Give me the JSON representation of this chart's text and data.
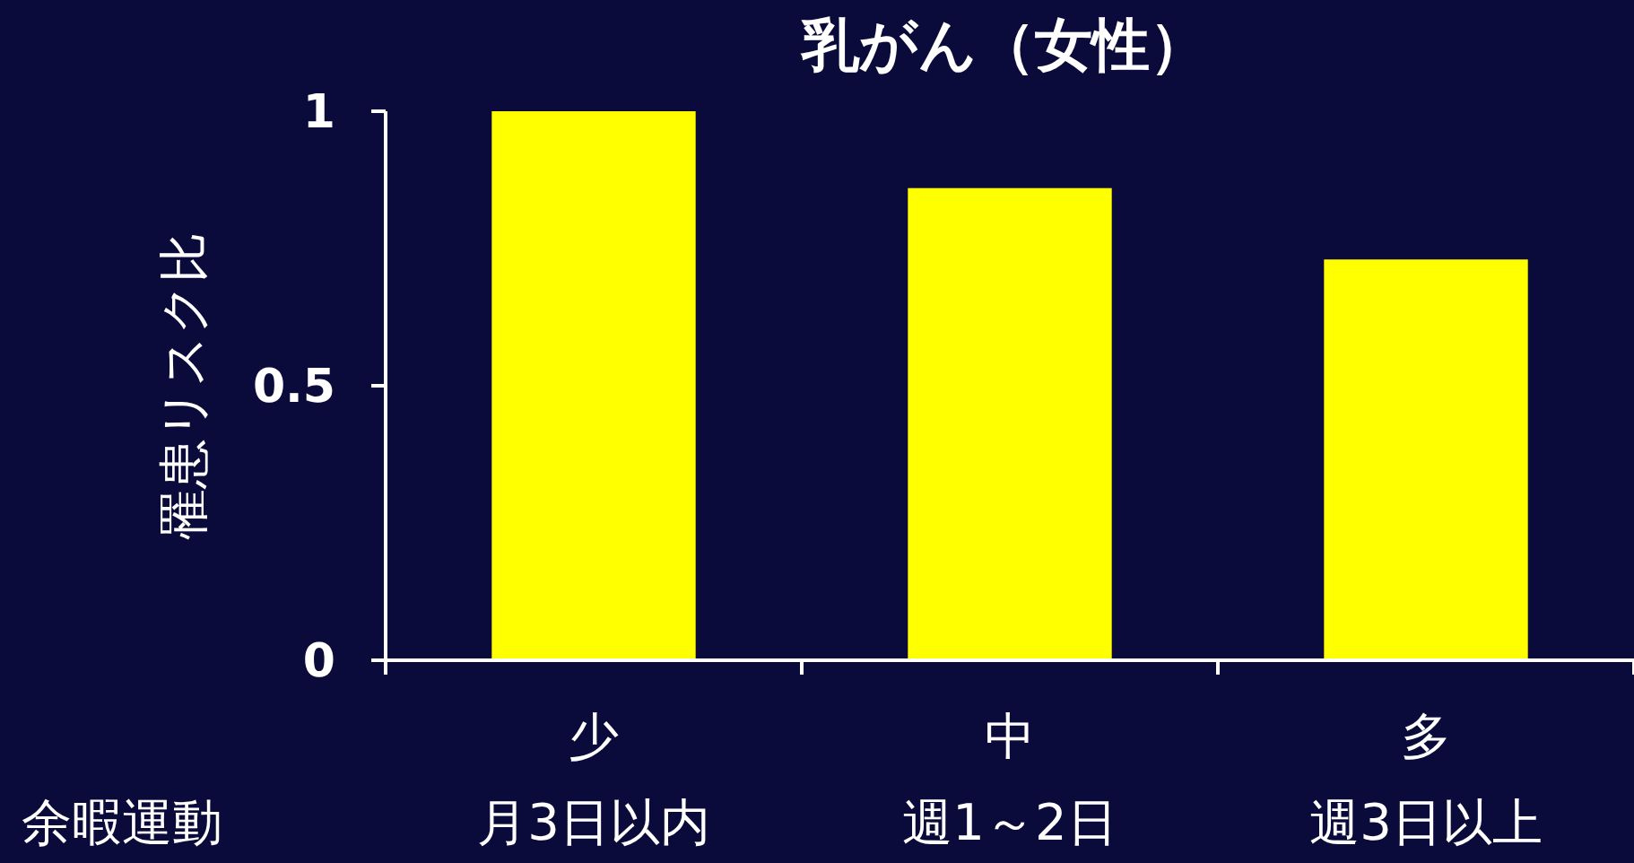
{
  "chart_data": {
    "type": "bar",
    "title": "乳がん（女性）",
    "ylabel": "罹患リスク比",
    "xlabel": "余暇運動",
    "categories": [
      "少",
      "中",
      "多"
    ],
    "annotations": [
      "月3日以内",
      "週1～2日",
      "週3日以上"
    ],
    "values": [
      1,
      0.86,
      0.73
    ],
    "color": "#ffff00",
    "ylim": [
      0,
      1
    ],
    "yticks": [
      0,
      0.5,
      1
    ],
    "grid": false
  }
}
